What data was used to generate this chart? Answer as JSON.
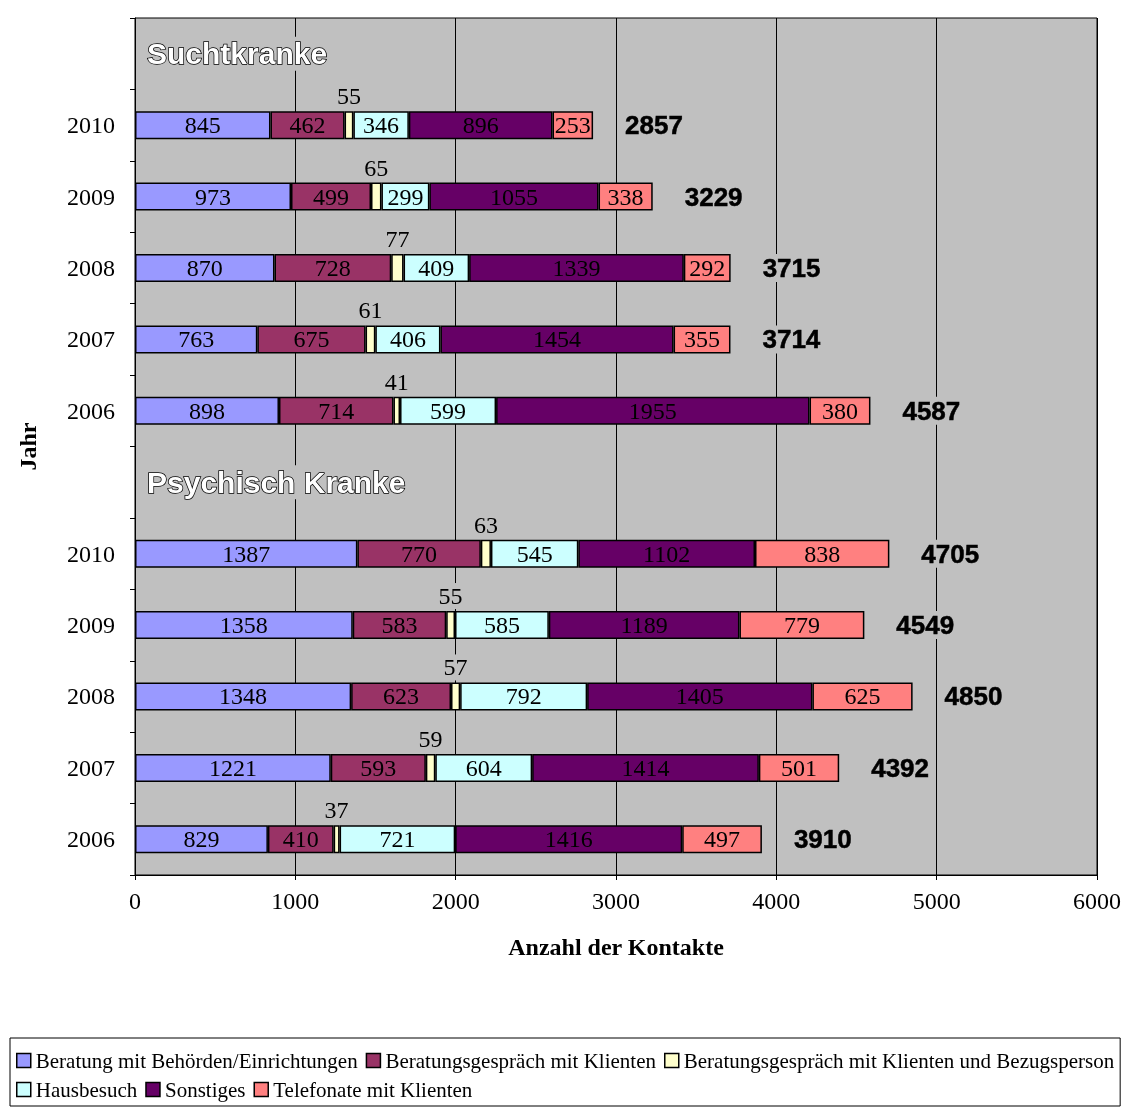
{
  "chart_data": {
    "type": "bar",
    "orientation": "horizontal",
    "stacked": true,
    "xlabel": "Anzahl der Kontakte",
    "ylabel": "Jahr",
    "categories": [
      null,
      "2010",
      "2009",
      "2008",
      "2007",
      "2006",
      null,
      "2010",
      "2009",
      "2008",
      "2007",
      "2006"
    ],
    "series": [
      {
        "name": "Beratung mit Behörden/Einrichtungen",
        "color": "#9999ff",
        "values": [
          null,
          845,
          973,
          870,
          763,
          898,
          null,
          1387,
          1358,
          1348,
          1221,
          829
        ]
      },
      {
        "name": "Beratungsgespräch mit Klienten",
        "color": "#993366",
        "values": [
          null,
          462,
          499,
          728,
          675,
          714,
          null,
          770,
          583,
          623,
          593,
          410
        ]
      },
      {
        "name": "Beratungsgespräch mit Klienten und Bezugsperson",
        "color": "#ffffcc",
        "values": [
          null,
          55,
          65,
          77,
          61,
          41,
          null,
          63,
          55,
          57,
          59,
          37
        ]
      },
      {
        "name": "Hausbesuch",
        "color": "#ccffff",
        "values": [
          null,
          346,
          299,
          409,
          406,
          599,
          null,
          545,
          585,
          792,
          604,
          721
        ]
      },
      {
        "name": "Sonstiges",
        "color": "#660066",
        "values": [
          null,
          896,
          1055,
          1339,
          1454,
          1955,
          null,
          1102,
          1189,
          1405,
          1414,
          1416
        ]
      },
      {
        "name": "Telefonate mit Klienten",
        "color": "#ff8080",
        "values": [
          null,
          253,
          338,
          292,
          355,
          380,
          null,
          838,
          779,
          625,
          501,
          497
        ]
      }
    ],
    "totals": [
      null,
      "2857",
      "3229",
      "3715",
      "3714",
      "4587",
      null,
      "4705",
      "4549",
      "4850",
      "4392",
      "3910"
    ],
    "annotations": [
      "Suchtkranke",
      "Psychisch Kranke"
    ],
    "xlim": [
      0,
      6000
    ],
    "xticks": [
      0,
      1000,
      2000,
      3000,
      4000,
      5000,
      6000
    ],
    "grid": "x",
    "legend": "bottom",
    "data_labels": true
  }
}
